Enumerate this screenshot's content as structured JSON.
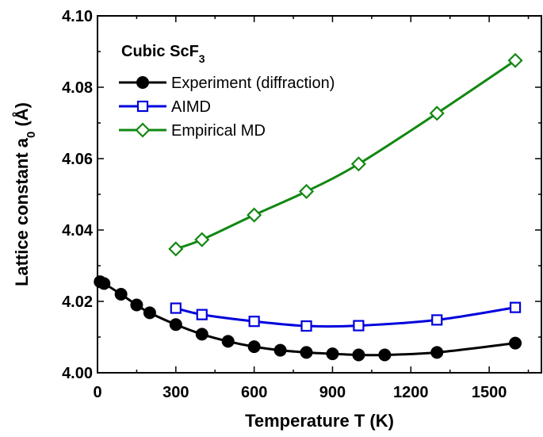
{
  "chart_data": {
    "type": "line",
    "title": "",
    "xlabel": "Temperature T (K)",
    "ylabel_main": "Lattice constant a",
    "ylabel_sub": "0",
    "ylabel_tail": " (Å)",
    "xlim": [
      0,
      1700
    ],
    "ylim": [
      4.0,
      4.1
    ],
    "xticks": [
      0,
      300,
      600,
      900,
      1200,
      1500
    ],
    "yticks": [
      4.0,
      4.02,
      4.04,
      4.06,
      4.08,
      4.1
    ],
    "xtick_labels": [
      "0",
      "300",
      "600",
      "900",
      "1200",
      "1500"
    ],
    "ytick_labels": [
      "4.00",
      "4.02",
      "4.04",
      "4.06",
      "4.08",
      "4.10"
    ],
    "grid": false,
    "legend_placement": "top-left",
    "legend_title_main": "Cubic ScF",
    "legend_title_sub": "3",
    "series": [
      {
        "name": "Experiment (diffraction)",
        "color": "#000000",
        "marker": "filled-circle",
        "x": [
          10,
          25,
          90,
          150,
          200,
          300,
          400,
          500,
          600,
          700,
          800,
          900,
          1000,
          1100,
          1300,
          1600
        ],
        "y": [
          4.0255,
          4.025,
          4.022,
          4.019,
          4.0168,
          4.0135,
          4.0108,
          4.0088,
          4.0073,
          4.0063,
          4.0057,
          4.0053,
          4.005,
          4.005,
          4.0057,
          4.0083
        ]
      },
      {
        "name": "AIMD",
        "color": "#0000dd",
        "marker": "open-square",
        "x": [
          300,
          400,
          600,
          800,
          1000,
          1300,
          1600
        ],
        "y": [
          4.0181,
          4.0163,
          4.0144,
          4.0131,
          4.0132,
          4.0148,
          4.0183
        ]
      },
      {
        "name": "Empirical MD",
        "color": "#118811",
        "marker": "open-diamond",
        "x": [
          300,
          400,
          600,
          800,
          1000,
          1300,
          1600
        ],
        "y": [
          4.0347,
          4.0373,
          4.0442,
          4.0508,
          4.0585,
          4.0727,
          4.0875
        ]
      }
    ]
  }
}
